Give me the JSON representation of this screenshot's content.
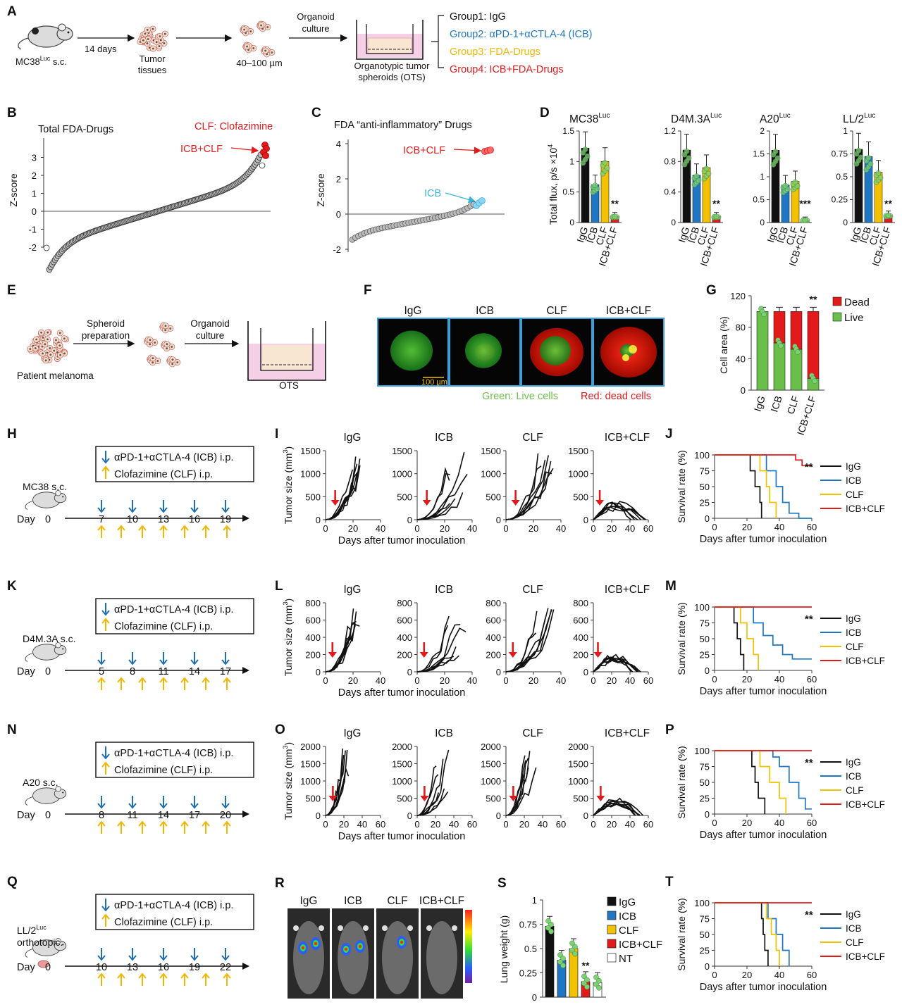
{
  "panels": {
    "A": "A",
    "B": "B",
    "C": "C",
    "D": "D",
    "E": "E",
    "F": "F",
    "G": "G",
    "H": "H",
    "I": "I",
    "J": "J",
    "K": "K",
    "L": "L",
    "M": "M",
    "N": "N",
    "O": "O",
    "P": "P",
    "Q": "Q",
    "R": "R",
    "S": "S",
    "T": "T"
  },
  "colors": {
    "igg": "#111111",
    "icb": "#1f77c4",
    "clf": "#f2c200",
    "combo": "#e31a1c",
    "green": "#6abf4b",
    "pink": "#f4cfe6",
    "arrow_blue": "#1f6fb5",
    "arrow_yellow": "#f2b705"
  },
  "panelA": {
    "mouse_label": "MC38",
    "mouse_label_sup": "Luc",
    "mouse_label_suffix": " s.c.",
    "days": "14 days",
    "tissue_line1": "Tumor",
    "tissue_line2": "tissues",
    "size": "40–100 µm",
    "culture_line1": "Organoid",
    "culture_line2": "culture",
    "ots_line1": "Organotypic tumor",
    "ots_line2": "spheroids (OTS)",
    "groups": [
      {
        "text": "Group1: IgG",
        "color": "#111111"
      },
      {
        "text": "Group2: αPD-1+αCTLA-4 (ICB)",
        "color": "#1f77c4"
      },
      {
        "text": "Group3: FDA-Drugs",
        "color": "#f2b705"
      },
      {
        "text": "Group4: ICB+FDA-Drugs",
        "color": "#e31a1c"
      }
    ]
  },
  "panelB": {
    "title": "Total FDA-Drugs",
    "annotation": "CLF: Clofazimine",
    "arrow_label": "ICB+CLF",
    "ylabel": "Z-score",
    "yticks": [
      "3",
      "2",
      "1",
      "0",
      "-1",
      "-2"
    ]
  },
  "panelC": {
    "title": "FDA “anti-inflammatory” Drugs",
    "arrow_label": "ICB+CLF",
    "icb_label": "ICB",
    "ylabel": "Z-score",
    "yticks": [
      "4",
      "2",
      "0",
      "-2"
    ]
  },
  "panelD": {
    "ylabel": "Total flux, p/s ×10",
    "ylabel_sup": "4",
    "categories": [
      "IgG",
      "ICB",
      "CLF",
      "ICB+CLF"
    ],
    "charts": [
      {
        "name": "MC38",
        "sup": "Luc",
        "yticks": [
          "1.5",
          "1",
          "0.5",
          "0"
        ],
        "ymax": 1.5,
        "values": [
          1.22,
          0.62,
          1.0,
          0.1
        ],
        "sig": "**"
      },
      {
        "name": "D4M.3A",
        "sup": "Luc",
        "yticks": [
          "1.2",
          "0.8",
          "0.4",
          "0"
        ],
        "ymax": 1.2,
        "values": [
          0.95,
          0.62,
          0.72,
          0.08
        ],
        "sig": "**"
      },
      {
        "name": "A20",
        "sup": "Luc",
        "yticks": [
          "2",
          "1.5",
          "1",
          "0.5",
          "0"
        ],
        "ymax": 2,
        "values": [
          1.58,
          0.82,
          0.9,
          0.05
        ],
        "sig": "***"
      },
      {
        "name": "LL/2",
        "sup": "Luc",
        "yticks": [
          "1",
          "0.75",
          "0.5",
          "0.25",
          "0"
        ],
        "ymax": 1,
        "values": [
          0.8,
          0.72,
          0.55,
          0.08
        ],
        "sig": "**"
      }
    ]
  },
  "panelE": {
    "spheroid_line1": "Spheroid",
    "spheroid_line2": "preparation",
    "culture_line1": "Organoid",
    "culture_line2": "culture",
    "patient": "Patient melanoma",
    "ots": "OTS"
  },
  "panelF": {
    "labels": [
      "IgG",
      "ICB",
      "CLF",
      "ICB+CLF"
    ],
    "scale": "100 µm",
    "live": "Green: Live cells",
    "dead": "Red: dead cells"
  },
  "panelG": {
    "ylabel": "Cell area (%)",
    "yticks": [
      "120",
      "80",
      "40",
      "0"
    ],
    "categories": [
      "IgG",
      "ICB",
      "CLF",
      "ICB+CLF"
    ],
    "live": [
      100,
      60,
      52,
      15
    ],
    "dead": [
      0,
      40,
      48,
      85
    ],
    "legend_dead": "Dead",
    "legend_live": "Live",
    "sig": "**"
  },
  "treatment": {
    "icb": "αPD-1+αCTLA-4 (ICB) i.p.",
    "clf": "Clofazimine (CLF) i.p.",
    "day": "Day",
    "zero": "0"
  },
  "panelH": {
    "model": "MC38 s.c.",
    "days": [
      "7",
      "10",
      "13",
      "16",
      "19"
    ]
  },
  "panelK": {
    "model": "D4M.3A s.c.",
    "days": [
      "5",
      "8",
      "11",
      "14",
      "17"
    ]
  },
  "panelN": {
    "model": "A20 s.c.",
    "days": [
      "8",
      "11",
      "14",
      "17",
      "20"
    ]
  },
  "panelQ": {
    "model_line1": "LL/2",
    "model_sup": "Luc",
    "model_line2": "orthotopic.",
    "days": [
      "10",
      "13",
      "16",
      "19",
      "22"
    ]
  },
  "growth": {
    "titles": [
      "IgG",
      "ICB",
      "CLF",
      "ICB+CLF"
    ],
    "xlabel": "Days after tumor inoculation",
    "ylabel": "Tumor size (mm",
    "ylabel_sup": "3",
    "I": {
      "yticks": [
        "1500",
        "1000",
        "500",
        "0"
      ],
      "xticks": [
        "0",
        "20",
        "40"
      ],
      "xticks4": [
        "0",
        "20",
        "40",
        "60"
      ]
    },
    "L": {
      "yticks": [
        "800",
        "600",
        "400",
        "200",
        "0"
      ],
      "xticks": [
        "0",
        "20",
        "40"
      ],
      "xticks4": [
        "0",
        "20",
        "40",
        "60"
      ]
    },
    "O": {
      "yticks": [
        "2000",
        "1500",
        "1000",
        "500",
        "0"
      ],
      "xticks": [
        "0",
        "20",
        "40",
        "60"
      ],
      "xticks4": [
        "0",
        "20",
        "40",
        "60"
      ]
    }
  },
  "survival": {
    "ylabel": "Survival rate (%)",
    "xlabel": "Days after tumor inoculation",
    "yticks": [
      "100",
      "75",
      "50",
      "25",
      "0"
    ],
    "xticks": [
      "0",
      "20",
      "40",
      "60"
    ],
    "legend": [
      "IgG",
      "ICB",
      "CLF",
      "ICB+CLF"
    ],
    "sig": "**",
    "J": {
      "igg": [
        [
          0,
          100
        ],
        [
          20,
          100
        ],
        [
          22,
          75
        ],
        [
          25,
          50
        ],
        [
          28,
          25
        ],
        [
          29,
          0
        ]
      ],
      "icb": [
        [
          0,
          100
        ],
        [
          28,
          100
        ],
        [
          32,
          75
        ],
        [
          38,
          50
        ],
        [
          42,
          25
        ],
        [
          46,
          8
        ],
        [
          52,
          0
        ],
        [
          60,
          0
        ]
      ],
      "clf": [
        [
          0,
          100
        ],
        [
          25,
          100
        ],
        [
          28,
          75
        ],
        [
          32,
          50
        ],
        [
          34,
          25
        ],
        [
          38,
          0
        ]
      ],
      "combo": [
        [
          0,
          100
        ],
        [
          48,
          100
        ],
        [
          50,
          92
        ],
        [
          54,
          83
        ],
        [
          60,
          83
        ]
      ]
    },
    "M": {
      "igg": [
        [
          0,
          100
        ],
        [
          10,
          100
        ],
        [
          12,
          75
        ],
        [
          14,
          50
        ],
        [
          16,
          25
        ],
        [
          18,
          0
        ]
      ],
      "icb": [
        [
          0,
          100
        ],
        [
          20,
          100
        ],
        [
          24,
          75
        ],
        [
          30,
          55
        ],
        [
          36,
          40
        ],
        [
          42,
          25
        ],
        [
          48,
          18
        ],
        [
          60,
          18
        ]
      ],
      "clf": [
        [
          0,
          100
        ],
        [
          12,
          100
        ],
        [
          16,
          75
        ],
        [
          20,
          50
        ],
        [
          24,
          25
        ],
        [
          27,
          0
        ]
      ],
      "combo": [
        [
          0,
          100
        ],
        [
          60,
          100
        ]
      ]
    },
    "P": {
      "igg": [
        [
          0,
          100
        ],
        [
          20,
          100
        ],
        [
          23,
          75
        ],
        [
          25,
          50
        ],
        [
          27,
          25
        ],
        [
          31,
          0
        ]
      ],
      "icb": [
        [
          0,
          100
        ],
        [
          33,
          100
        ],
        [
          36,
          90
        ],
        [
          40,
          75
        ],
        [
          46,
          50
        ],
        [
          52,
          25
        ],
        [
          56,
          8
        ],
        [
          60,
          8
        ]
      ],
      "clf": [
        [
          0,
          100
        ],
        [
          26,
          100
        ],
        [
          28,
          75
        ],
        [
          34,
          50
        ],
        [
          40,
          25
        ],
        [
          44,
          0
        ]
      ],
      "combo": [
        [
          0,
          100
        ],
        [
          60,
          100
        ]
      ]
    },
    "T": {
      "igg": [
        [
          0,
          100
        ],
        [
          28,
          100
        ],
        [
          29,
          75
        ],
        [
          30,
          50
        ],
        [
          31,
          25
        ],
        [
          33,
          0
        ]
      ],
      "icb": [
        [
          0,
          100
        ],
        [
          30,
          100
        ],
        [
          33,
          75
        ],
        [
          38,
          50
        ],
        [
          42,
          25
        ],
        [
          46,
          0
        ]
      ],
      "clf": [
        [
          0,
          100
        ],
        [
          30,
          100
        ],
        [
          32,
          75
        ],
        [
          35,
          50
        ],
        [
          38,
          25
        ],
        [
          40,
          0
        ]
      ],
      "combo": [
        [
          0,
          100
        ],
        [
          60,
          100
        ]
      ]
    }
  },
  "panelR": {
    "labels": [
      "IgG",
      "ICB",
      "CLF",
      "ICB+CLF"
    ]
  },
  "panelS": {
    "ylabel": "Lung weight (g)",
    "yticks": [
      "1",
      "0.75",
      "0.5",
      "0.25",
      "0"
    ],
    "categories": [
      "IgG",
      "ICB",
      "CLF",
      "ICB+CLF",
      "NT"
    ],
    "values": [
      0.73,
      0.38,
      0.5,
      0.16,
      0.15
    ],
    "ymax": 1,
    "legend": [
      "IgG",
      "ICB",
      "CLF",
      "ICB+CLF",
      "NT"
    ],
    "sig": "**"
  },
  "chart_data": [
    {
      "type": "bar",
      "title": "MC38 Luc",
      "categories": [
        "IgG",
        "ICB",
        "CLF",
        "ICB+CLF"
      ],
      "values": [
        1.22,
        0.62,
        1.0,
        0.1
      ],
      "ylim": [
        0,
        1.5
      ],
      "ylabel": "Total flux, p/s ×10^4"
    },
    {
      "type": "bar",
      "title": "D4M.3A Luc",
      "categories": [
        "IgG",
        "ICB",
        "CLF",
        "ICB+CLF"
      ],
      "values": [
        0.95,
        0.62,
        0.72,
        0.08
      ],
      "ylim": [
        0,
        1.2
      ]
    },
    {
      "type": "bar",
      "title": "A20 Luc",
      "categories": [
        "IgG",
        "ICB",
        "CLF",
        "ICB+CLF"
      ],
      "values": [
        1.58,
        0.82,
        0.9,
        0.05
      ],
      "ylim": [
        0,
        2
      ]
    },
    {
      "type": "bar",
      "title": "LL/2 Luc",
      "categories": [
        "IgG",
        "ICB",
        "CLF",
        "ICB+CLF"
      ],
      "values": [
        0.8,
        0.72,
        0.55,
        0.08
      ],
      "ylim": [
        0,
        1
      ]
    },
    {
      "type": "bar",
      "title": "Cell area (%)",
      "categories": [
        "IgG",
        "ICB",
        "CLF",
        "ICB+CLF"
      ],
      "series": [
        {
          "name": "Live",
          "values": [
            100,
            60,
            52,
            15
          ]
        },
        {
          "name": "Dead",
          "values": [
            0,
            40,
            48,
            85
          ]
        }
      ],
      "ylim": [
        0,
        120
      ]
    },
    {
      "type": "bar",
      "title": "Lung weight (g)",
      "categories": [
        "IgG",
        "ICB",
        "CLF",
        "ICB+CLF",
        "NT"
      ],
      "values": [
        0.73,
        0.38,
        0.5,
        0.16,
        0.15
      ],
      "ylim": [
        0,
        1
      ]
    }
  ]
}
